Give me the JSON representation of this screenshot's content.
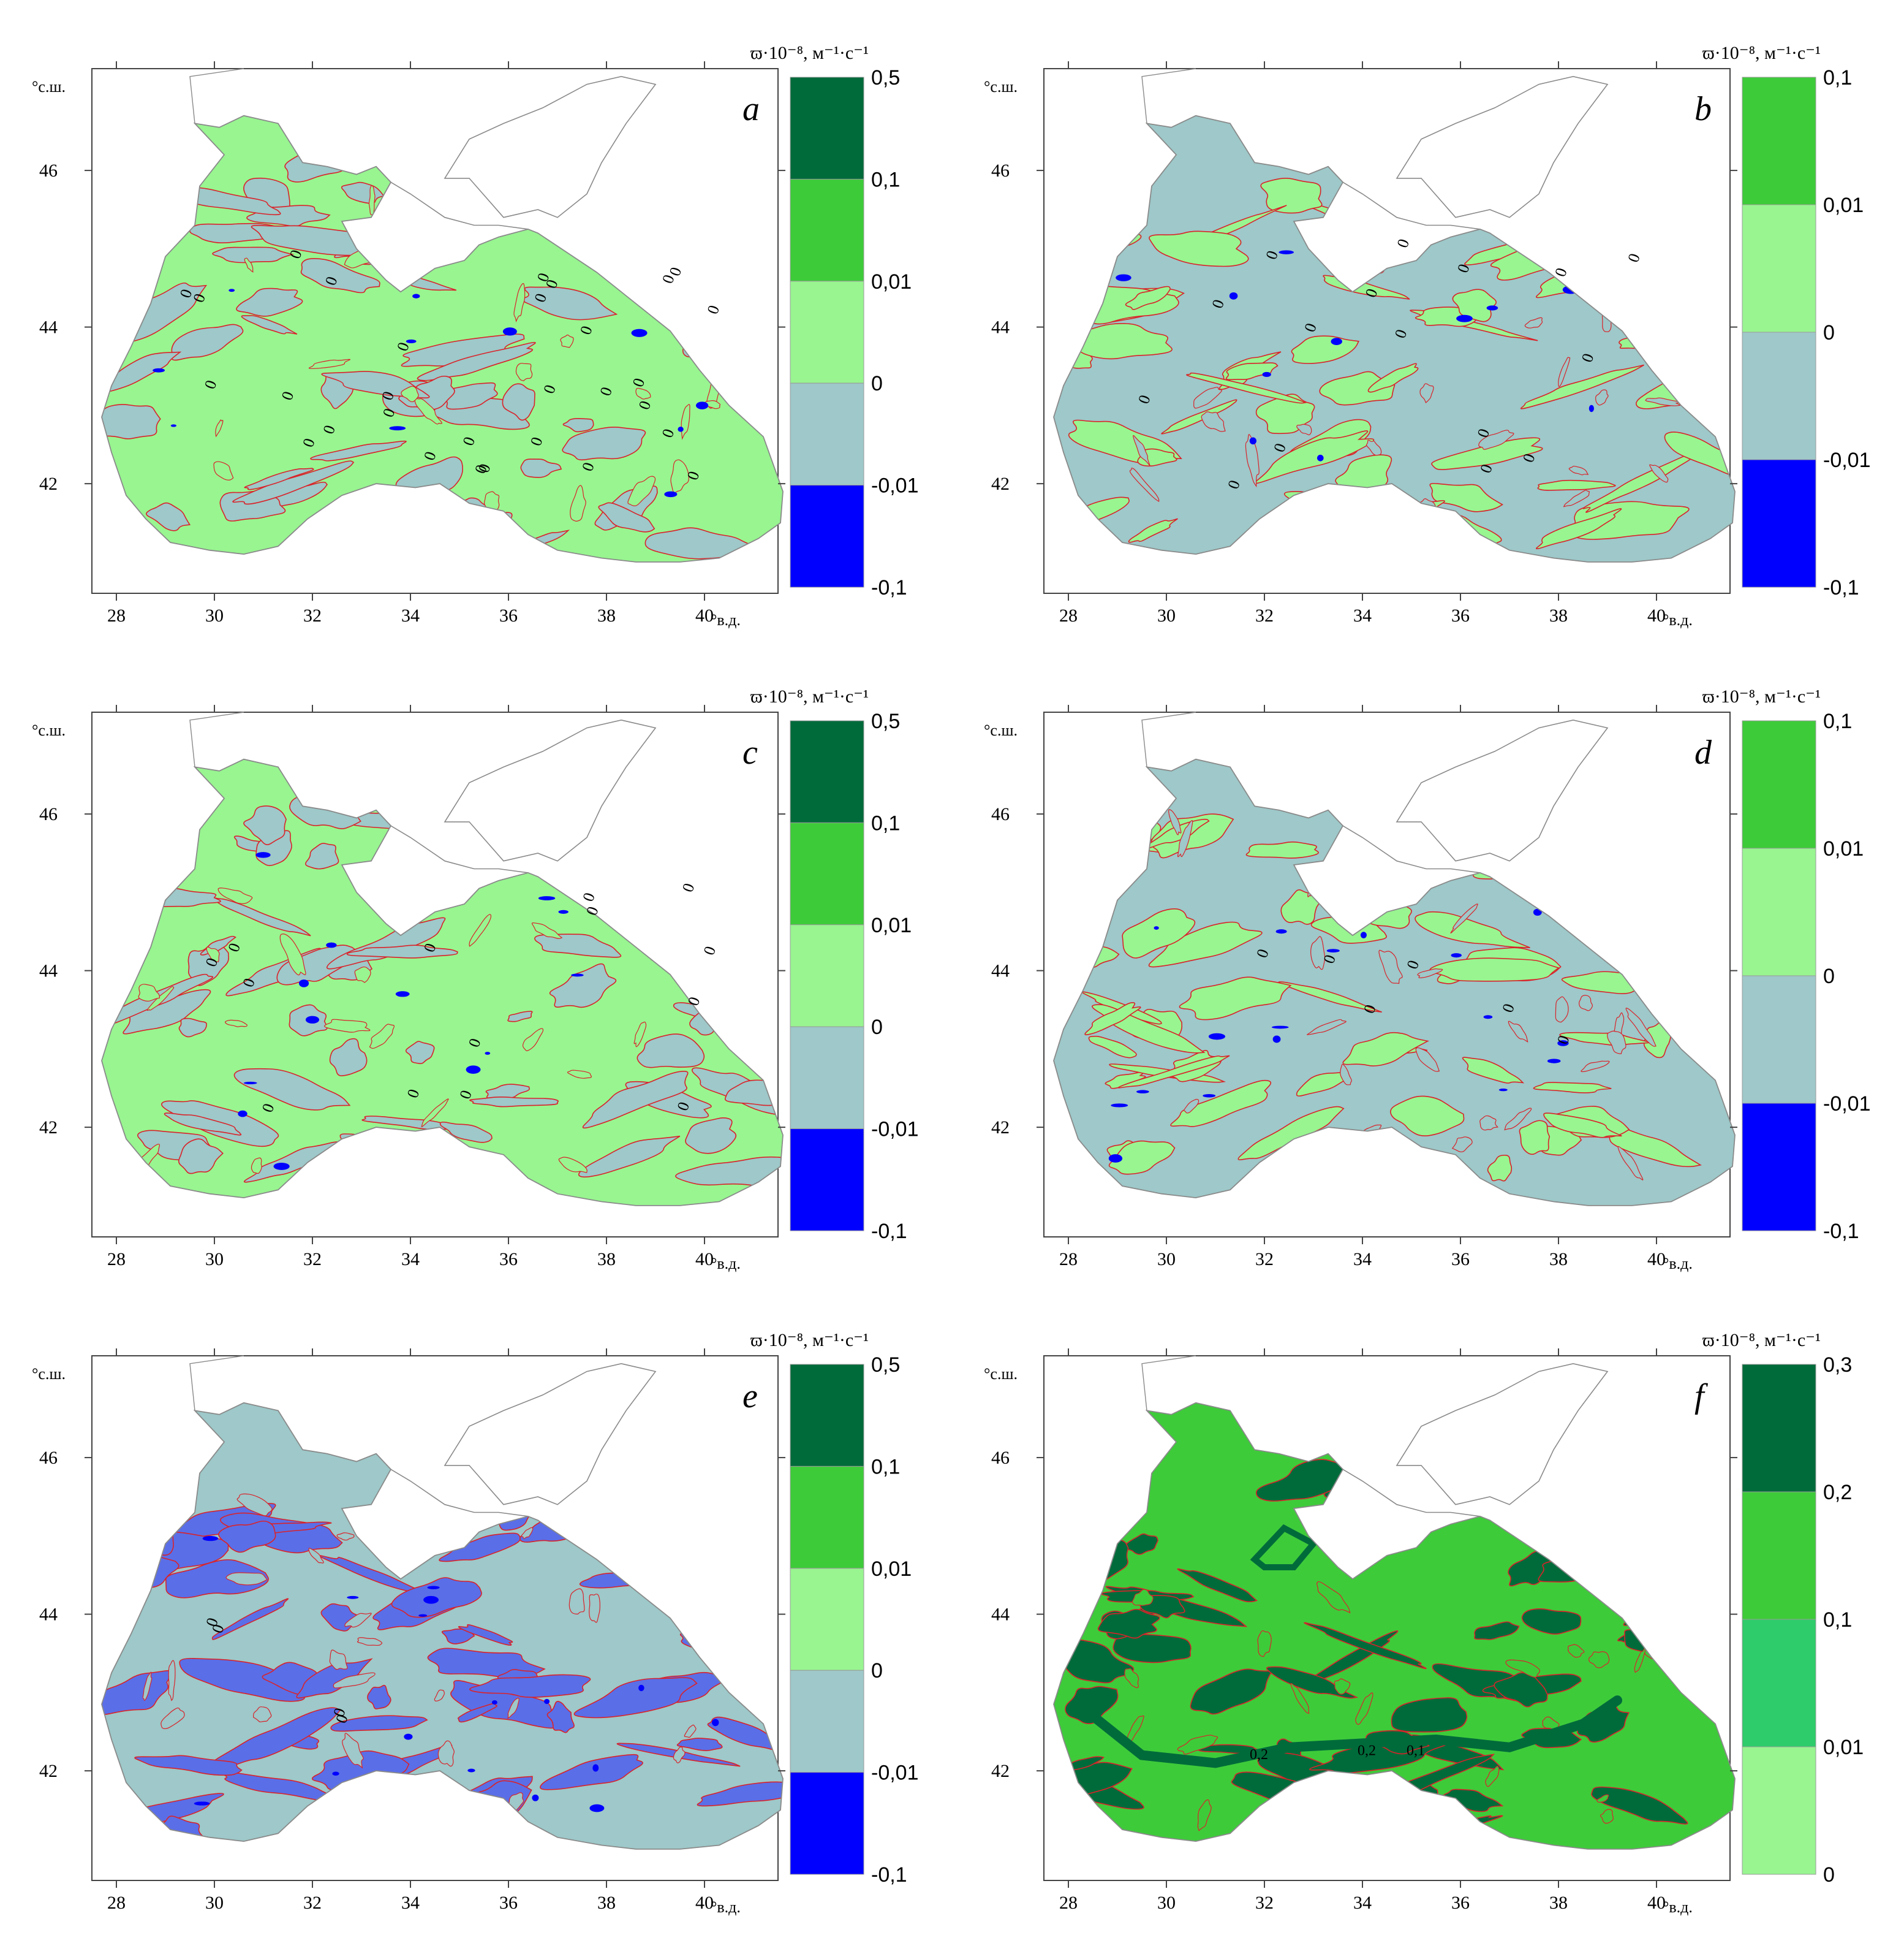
{
  "common": {
    "lat_unit": "°с.ш.",
    "lon_unit": "°в.д.",
    "lon_ticks": [
      "28",
      "30",
      "32",
      "34",
      "36",
      "38",
      "40"
    ],
    "lat_ticks": [
      "46",
      "44",
      "42"
    ],
    "legend_title": "ϖ·10⁻⁸, м⁻¹·с⁻¹"
  },
  "colors": {
    "dark_green": "#006b3a",
    "green": "#3ecb3a",
    "light_green": "#98f590",
    "gray_blue": "#9ec8c9",
    "blue": "#0000ff",
    "medium_green": "#2ecc6a",
    "contour_red": "#d9232a",
    "coast": "#8a8a8a"
  },
  "panels": [
    {
      "id": "a",
      "label": "a",
      "legend_values": [
        "0,5",
        "0,1",
        "0,01",
        "0",
        "-0,01",
        "-0,1"
      ],
      "legend_colors": [
        "#006b3a",
        "#3ecb3a",
        "#98f590",
        "#9ec8c9",
        "#0000ff"
      ],
      "background": "#98f590",
      "patch": "#9ec8c9",
      "contour_labels": 30
    },
    {
      "id": "b",
      "label": "b",
      "legend_values": [
        "0,1",
        "0,01",
        "0",
        "-0,01",
        "-0,1"
      ],
      "legend_colors": [
        "#3ecb3a",
        "#98f590",
        "#9ec8c9",
        "#0000ff"
      ],
      "background": "#9ec8c9",
      "patch": "#98f590",
      "contour_labels": 16
    },
    {
      "id": "c",
      "label": "c",
      "legend_values": [
        "0,5",
        "0,1",
        "0,01",
        "0",
        "-0,01",
        "-0,1"
      ],
      "legend_colors": [
        "#006b3a",
        "#3ecb3a",
        "#98f590",
        "#9ec8c9",
        "#0000ff"
      ],
      "background": "#98f590",
      "patch": "#9ec8c9",
      "contour_labels": 14
    },
    {
      "id": "d",
      "label": "d",
      "legend_values": [
        "0,1",
        "0,01",
        "0",
        "-0,01",
        "-0,1"
      ],
      "legend_colors": [
        "#3ecb3a",
        "#98f590",
        "#9ec8c9",
        "#0000ff"
      ],
      "background": "#9ec8c9",
      "patch": "#98f590",
      "contour_labels": 6
    },
    {
      "id": "e",
      "label": "e",
      "legend_values": [
        "0,5",
        "0,1",
        "0,01",
        "0",
        "-0,01",
        "-0,1"
      ],
      "legend_colors": [
        "#006b3a",
        "#3ecb3a",
        "#98f590",
        "#9ec8c9",
        "#0000ff"
      ],
      "background": "#9ec8c9",
      "patch": "#5a6ee8",
      "contour_labels": 4
    },
    {
      "id": "f",
      "label": "f",
      "legend_values": [
        "0,3",
        "0,2",
        "0,1",
        "0,01",
        "0"
      ],
      "legend_colors": [
        "#006b3a",
        "#3ecb3a",
        "#2ecc6a",
        "#98f590"
      ],
      "background": "#3ecb3a",
      "patch": "#006b3a",
      "contour_labels": 0,
      "inline_labels": [
        "0,2",
        "0,2",
        "0,1"
      ]
    }
  ]
}
